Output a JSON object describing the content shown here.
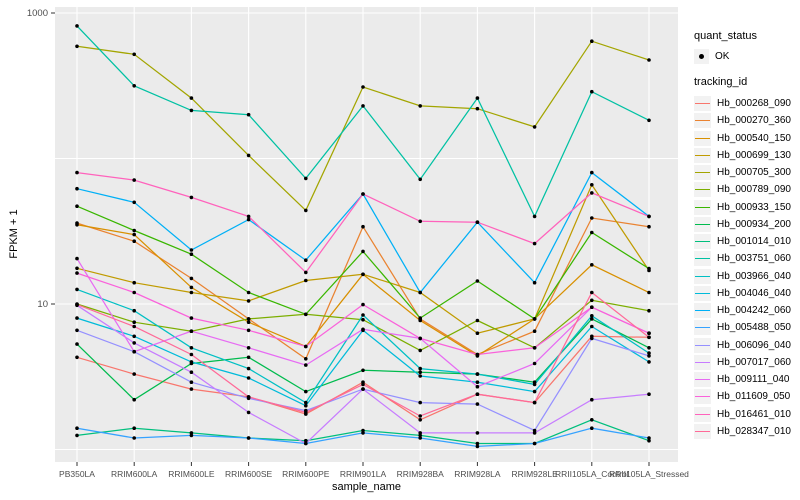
{
  "figure": {
    "panel_background": "#EBEBEB",
    "grid_color": "#FFFFFF",
    "tick_color": "#333333",
    "axis_text_color": "#4D4D4D",
    "point_color": "#000000"
  },
  "legend": {
    "quant_status_title": "quant_status",
    "ok_label": "OK",
    "tracking_id_title": "tracking_id"
  },
  "chart_data": {
    "type": "line",
    "title": "",
    "xlabel": "sample_name",
    "ylabel": "FPKM + 1",
    "yscale": "log10",
    "ylim": [
      1,
      1100
    ],
    "grid": "on",
    "legend_position": "right",
    "y_tick_labels": [
      "1000",
      "10"
    ],
    "y_tick_values": [
      1000,
      10
    ],
    "y_grid_values": [
      1,
      10,
      100,
      1000
    ],
    "categories": [
      "PB350LA",
      "RRIM600LA",
      "RRIM600LE",
      "RRIM600SE",
      "RRIM600PE",
      "RRIM901LA",
      "RRIM928BA",
      "RRIM928LA",
      "RRIM928LE",
      "RRII105LA_Control",
      "RRII105LA_Stressed"
    ],
    "series": [
      {
        "name": "Hb_000268_090",
        "color": "#F8766D",
        "values": [
          4.3,
          3.3,
          2.6,
          2.3,
          1.75,
          2.9,
          1.6,
          2.4,
          2.1,
          6.0,
          5.9
        ]
      },
      {
        "name": "Hb_000270_360",
        "color": "#EA8331",
        "values": [
          36,
          27,
          15,
          7.9,
          4.2,
          34,
          7.9,
          4.5,
          6.5,
          39,
          34
        ]
      },
      {
        "name": "Hb_000540_150",
        "color": "#D89000",
        "values": [
          35,
          30,
          13,
          7.5,
          5.1,
          16,
          7.7,
          4.4,
          7.9,
          18.6,
          12
        ]
      },
      {
        "name": "Hb_000699_130",
        "color": "#C09B00",
        "values": [
          17.6,
          14,
          12,
          10.5,
          14.5,
          16,
          12,
          6.3,
          7.9,
          66,
          17
        ]
      },
      {
        "name": "Hb_000705_300",
        "color": "#A3A500",
        "values": [
          590,
          520,
          260,
          105,
          44,
          310,
          230,
          220,
          165,
          640,
          475
        ]
      },
      {
        "name": "Hb_000789_090",
        "color": "#7CAE00",
        "values": [
          10,
          7.5,
          6.5,
          7.9,
          8.5,
          7.8,
          4.8,
          7.7,
          5.0,
          10.6,
          9.0
        ]
      },
      {
        "name": "Hb_000933_150",
        "color": "#39B600",
        "values": [
          47,
          32,
          22,
          12,
          8.5,
          23,
          8.0,
          14.4,
          7.9,
          31,
          17.5
        ]
      },
      {
        "name": "Hb_000934_200",
        "color": "#00BB4E",
        "values": [
          5.3,
          2.2,
          3.9,
          4.3,
          2.5,
          3.5,
          3.4,
          3.3,
          2.9,
          7.9,
          5.0
        ]
      },
      {
        "name": "Hb_001014_010",
        "color": "#00BF7D",
        "values": [
          1.25,
          1.4,
          1.3,
          1.2,
          1.15,
          1.35,
          1.25,
          1.1,
          1.1,
          1.6,
          1.15
        ]
      },
      {
        "name": "Hb_003751_060",
        "color": "#00C1A3",
        "values": [
          815,
          316,
          214,
          200,
          73,
          230,
          72,
          260,
          40,
          288,
          183
        ]
      },
      {
        "name": "Hb_003966_040",
        "color": "#00BFC4",
        "values": [
          12.6,
          9.0,
          5.0,
          3.6,
          2.1,
          8.4,
          3.6,
          3.3,
          2.8,
          8.3,
          4.6
        ]
      },
      {
        "name": "Hb_004046_040",
        "color": "#00BBDA",
        "values": [
          8.0,
          6.0,
          4.0,
          3.1,
          2.0,
          6.6,
          3.2,
          2.9,
          2.5,
          7.0,
          4.0
        ]
      },
      {
        "name": "Hb_004242_060",
        "color": "#00B0F6",
        "values": [
          62,
          50,
          23.5,
          38,
          20,
          57,
          12,
          36.5,
          14,
          80,
          40
        ]
      },
      {
        "name": "Hb_005488_050",
        "color": "#35A2FF",
        "values": [
          1.4,
          1.2,
          1.25,
          1.2,
          1.1,
          1.3,
          1.2,
          1.05,
          1.1,
          1.4,
          1.2
        ]
      },
      {
        "name": "Hb_006096_040",
        "color": "#9590FF",
        "values": [
          6.6,
          4.7,
          2.9,
          2.25,
          1.85,
          2.6,
          2.1,
          2.05,
          1.35,
          5.8,
          4.4
        ]
      },
      {
        "name": "Hb_007017_060",
        "color": "#C77CFF",
        "values": [
          9.8,
          5.4,
          3.4,
          1.8,
          1.1,
          2.6,
          1.3,
          1.3,
          1.3,
          2.2,
          2.4
        ]
      },
      {
        "name": "Hb_009111_040",
        "color": "#E76BF3",
        "values": [
          20.5,
          4.7,
          6.5,
          5.0,
          3.8,
          6.7,
          5.8,
          2.7,
          3.9,
          9.5,
          6.3
        ]
      },
      {
        "name": "Hb_011609_050",
        "color": "#FA62DB",
        "values": [
          16.3,
          12,
          8.0,
          6.6,
          5.1,
          9.9,
          5.8,
          4.5,
          5.0,
          9.5,
          6.3
        ]
      },
      {
        "name": "Hb_016461_010",
        "color": "#FF62BC",
        "values": [
          80,
          71,
          54,
          40,
          16.5,
          57,
          37,
          36.5,
          26,
          58,
          40
        ]
      },
      {
        "name": "Hb_028347_010",
        "color": "#FF6A98",
        "values": [
          9.9,
          7.0,
          4.5,
          2.3,
          1.8,
          2.8,
          1.7,
          2.4,
          2.1,
          12,
          5.9
        ]
      }
    ]
  }
}
